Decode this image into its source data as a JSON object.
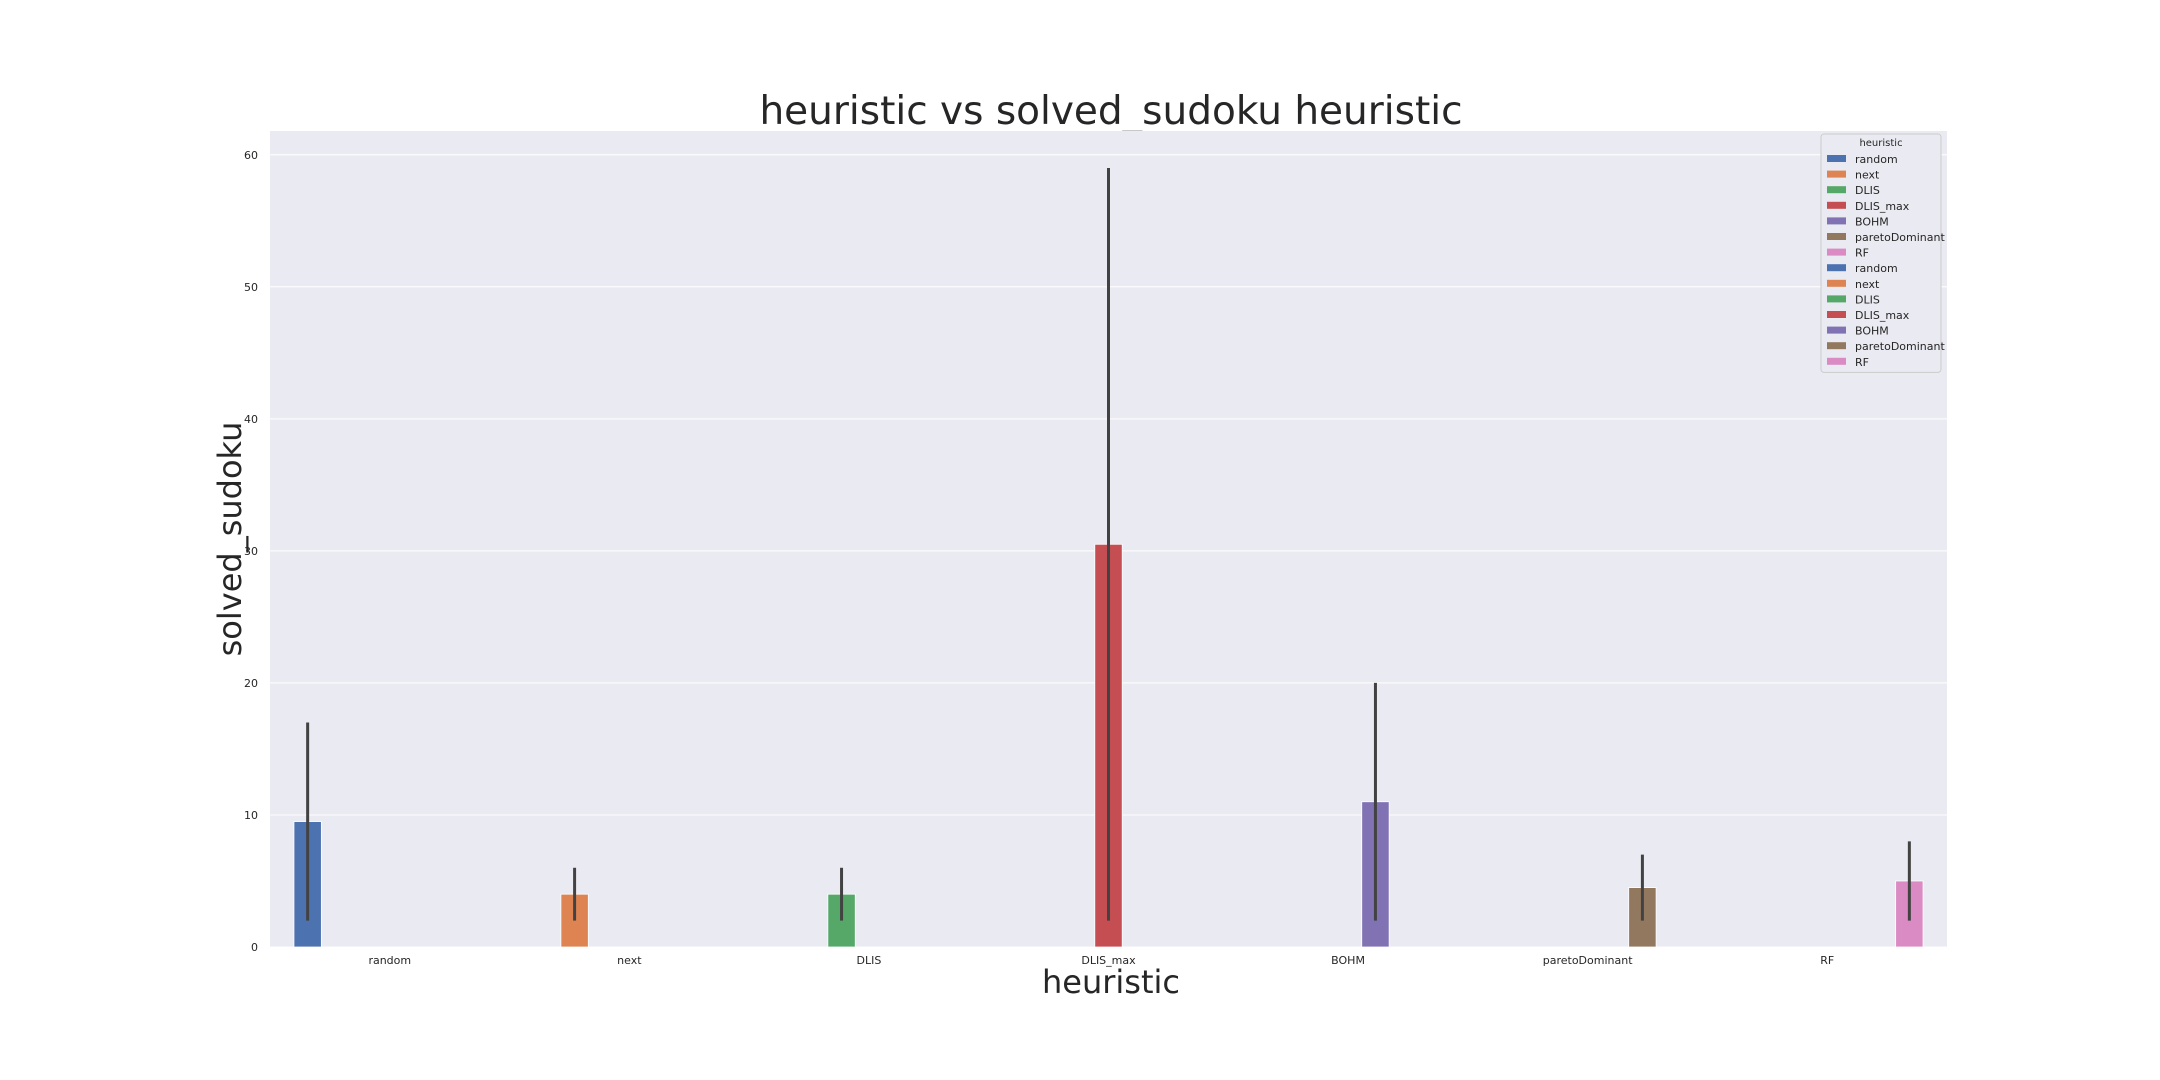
{
  "chart_data": {
    "type": "bar",
    "title": "heuristic vs solved_sudoku heuristic",
    "xlabel": "heuristic",
    "ylabel": "solved_sudoku",
    "categories": [
      "random",
      "next",
      "DLIS",
      "DLIS_max",
      "BOHM",
      "paretoDominant",
      "RF"
    ],
    "series": [
      {
        "name": "random",
        "color": "#4c72b0",
        "category": "random",
        "value": 9.5,
        "error": [
          2,
          17
        ]
      },
      {
        "name": "next",
        "color": "#dd8452",
        "category": "next",
        "value": 4,
        "error": [
          2,
          6
        ]
      },
      {
        "name": "DLIS",
        "color": "#55a868",
        "category": "DLIS",
        "value": 4,
        "error": [
          2,
          6
        ]
      },
      {
        "name": "DLIS_max",
        "color": "#c44e52",
        "category": "DLIS_max",
        "value": 30.5,
        "error": [
          2,
          59
        ]
      },
      {
        "name": "BOHM",
        "color": "#8172b3",
        "category": "BOHM",
        "value": 11,
        "error": [
          2,
          20
        ]
      },
      {
        "name": "paretoDominant",
        "color": "#937860",
        "category": "paretoDominant",
        "value": 4.5,
        "error": [
          2,
          7
        ]
      },
      {
        "name": "RF",
        "color": "#da8bc3",
        "category": "RF",
        "value": 5,
        "error": [
          2,
          8
        ]
      }
    ],
    "ylim": [
      0,
      61.8
    ],
    "yticks": [
      0,
      10,
      20,
      30,
      40,
      50,
      60
    ],
    "grid": true,
    "legend": {
      "title": "heuristic",
      "placement": "top-right",
      "entries": [
        {
          "label": "random",
          "color": "#4c72b0"
        },
        {
          "label": "next",
          "color": "#dd8452"
        },
        {
          "label": "DLIS",
          "color": "#55a868"
        },
        {
          "label": "DLIS_max",
          "color": "#c44e52"
        },
        {
          "label": "BOHM",
          "color": "#8172b3"
        },
        {
          "label": "paretoDominant",
          "color": "#937860"
        },
        {
          "label": "RF",
          "color": "#da8bc3"
        },
        {
          "label": "random",
          "color": "#4c72b0"
        },
        {
          "label": "next",
          "color": "#dd8452"
        },
        {
          "label": "DLIS",
          "color": "#55a868"
        },
        {
          "label": "DLIS_max",
          "color": "#c44e52"
        },
        {
          "label": "BOHM",
          "color": "#8172b3"
        },
        {
          "label": "paretoDominant",
          "color": "#937860"
        },
        {
          "label": "RF",
          "color": "#da8bc3"
        }
      ]
    }
  }
}
